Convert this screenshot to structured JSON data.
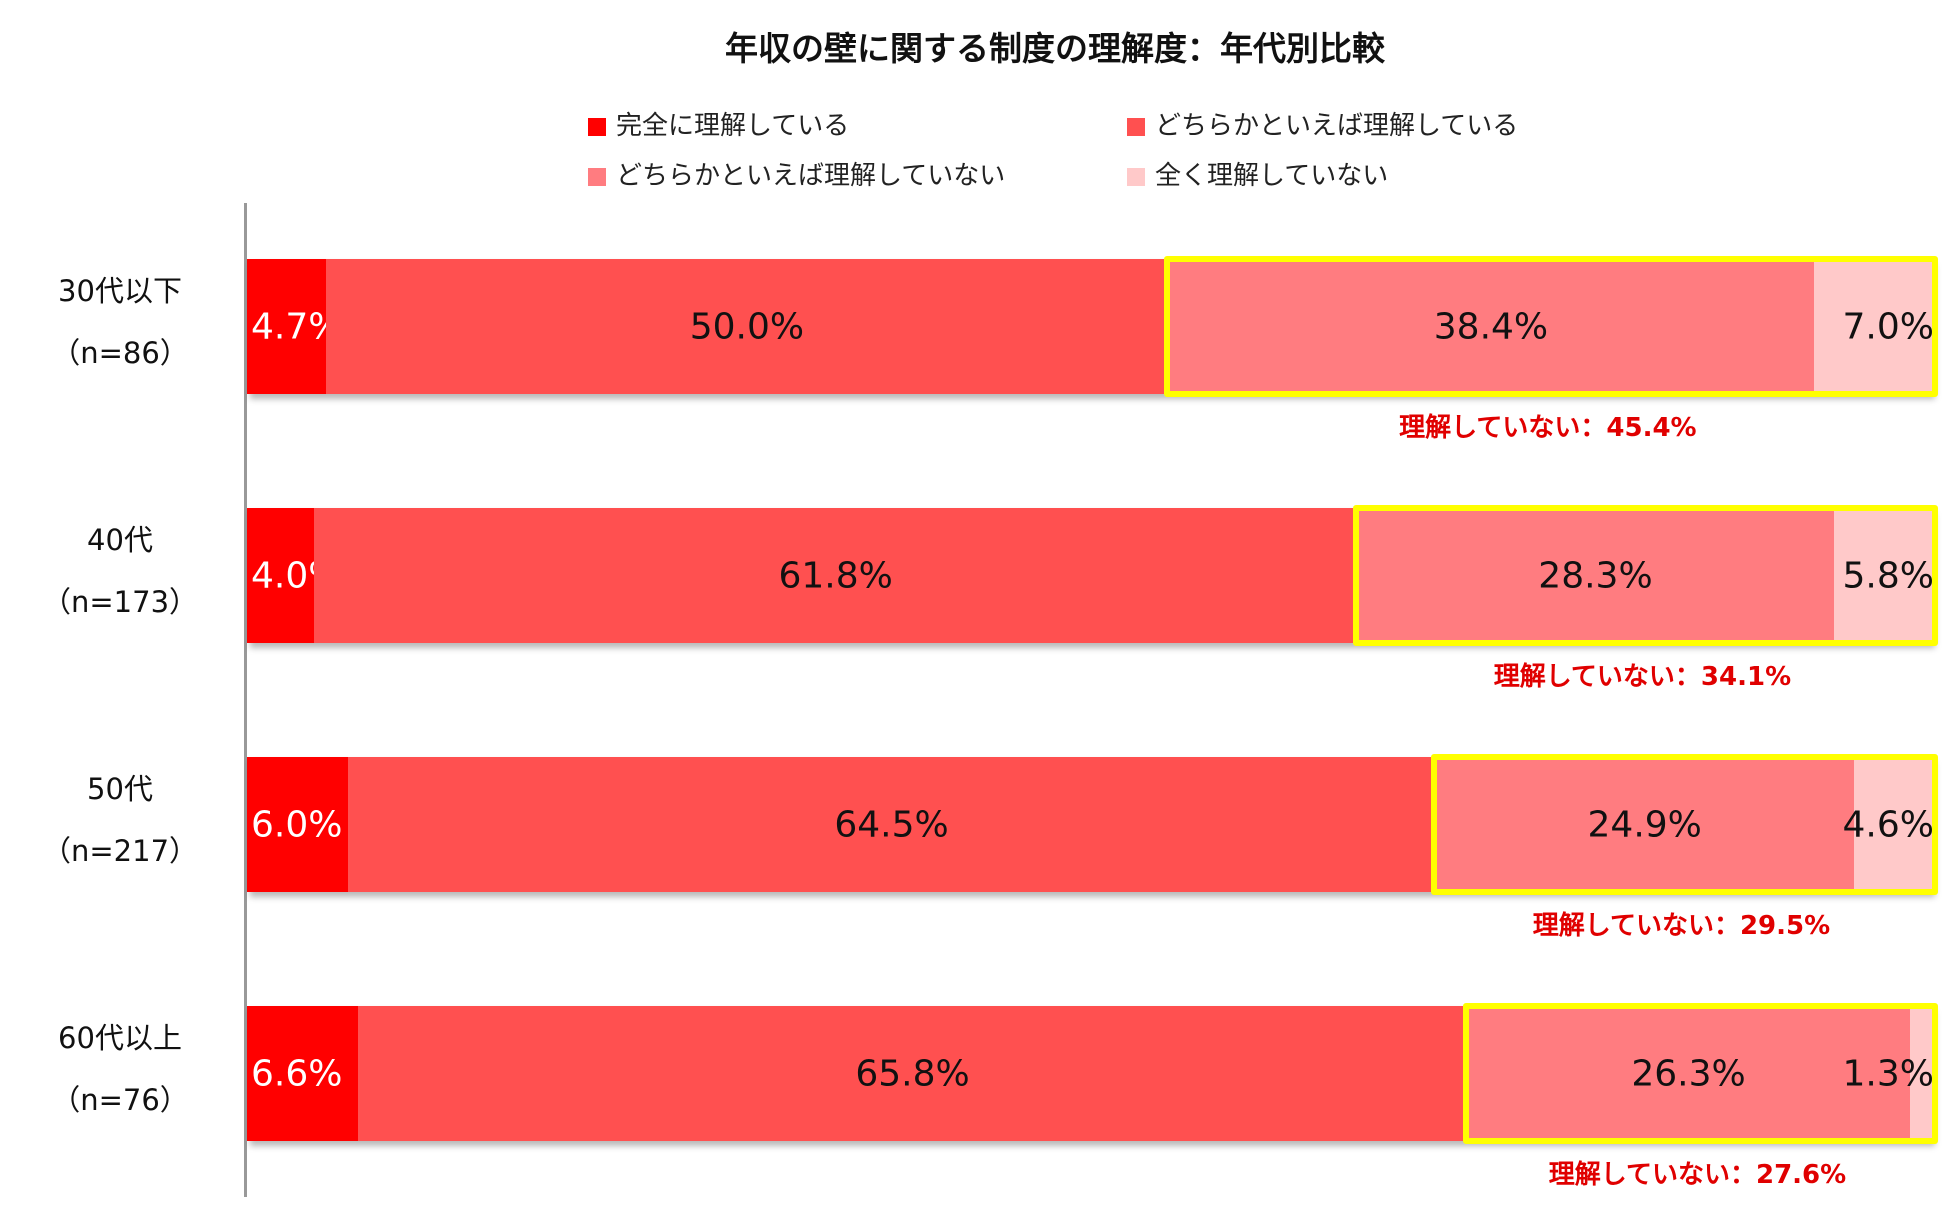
{
  "chart_data": {
    "type": "bar",
    "orientation": "horizontal",
    "stacked": true,
    "percent_stacked": true,
    "title": "年収の壁に関する制度の理解度：年代別比較",
    "xlabel": "",
    "ylabel": "",
    "xlim": [
      0,
      100
    ],
    "grid": false,
    "legend_position": "top",
    "categories": [
      "30代以下（n=86）",
      "40代（n=173）",
      "50代（n=217）",
      "60代以上（n=76）"
    ],
    "series": [
      {
        "name": "完全に理解している",
        "color": "#ff0000",
        "values": [
          4.7,
          4.0,
          6.0,
          6.6
        ]
      },
      {
        "name": "どちらかといえば理解している",
        "color": "#ff5050",
        "values": [
          50.0,
          61.8,
          64.5,
          65.8
        ]
      },
      {
        "name": "どちらかといえば理解していない",
        "color": "#ff7c80",
        "values": [
          38.4,
          28.3,
          24.9,
          26.3
        ]
      },
      {
        "name": "全く理解していない",
        "color": "#ffc9c9",
        "values": [
          7.0,
          5.8,
          4.6,
          1.3
        ]
      }
    ],
    "annotations": [
      {
        "category": "30代以下（n=86）",
        "text": "理解していない：45.4%",
        "value": 45.4
      },
      {
        "category": "40代（n=173）",
        "text": "理解していない：34.1%",
        "value": 34.1
      },
      {
        "category": "50代（n=217）",
        "text": "理解していない：29.5%",
        "value": 29.5
      },
      {
        "category": "60代以上（n=76）",
        "text": "理解していない：27.6%",
        "value": 27.6
      }
    ],
    "highlight_color": "#ffff00"
  },
  "title": "年収の壁に関する制度の理解度：年代別比較",
  "legend": [
    {
      "label": "完全に理解している",
      "color": "#ff0000"
    },
    {
      "label": "どちらかといえば理解している",
      "color": "#ff5050"
    },
    {
      "label": "どちらかといえば理解していない",
      "color": "#ff7c80"
    },
    {
      "label": "全く理解していない",
      "color": "#ffc9c9"
    }
  ],
  "rows": [
    {
      "group": "30代以下",
      "n": "（n=86）",
      "labels": [
        "4.7%",
        "50.0%",
        "38.4%",
        "7.0%"
      ],
      "summary": "理解していない：45.4%"
    },
    {
      "group": "40代",
      "n": "（n=173）",
      "labels": [
        "4.0%",
        "61.8%",
        "28.3%",
        "5.8%"
      ],
      "summary": "理解していない：34.1%"
    },
    {
      "group": "50代",
      "n": "（n=217）",
      "labels": [
        "6.0%",
        "64.5%",
        "24.9%",
        "4.6%"
      ],
      "summary": "理解していない：29.5%"
    },
    {
      "group": "60代以上",
      "n": "（n=76）",
      "labels": [
        "6.6%",
        "65.8%",
        "26.3%",
        "1.3%"
      ],
      "summary": "理解していない：27.6%"
    }
  ]
}
